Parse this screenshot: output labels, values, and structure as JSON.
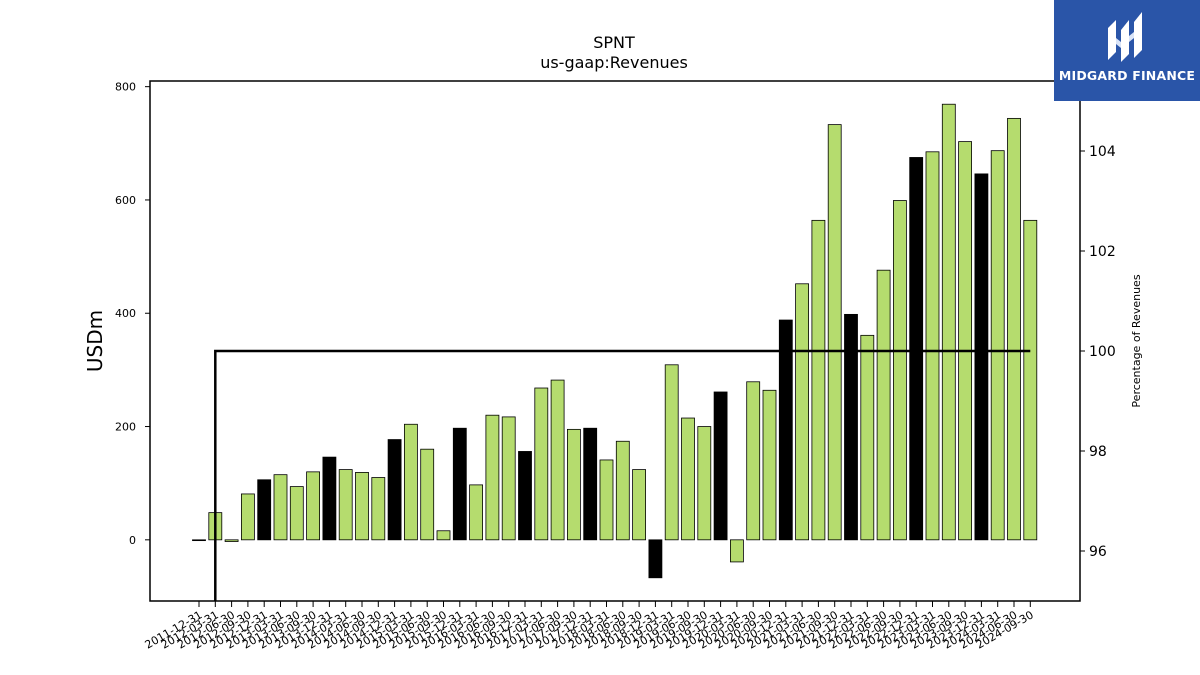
{
  "logo": {
    "text": "MIDGARD FINANCE",
    "icon": "midgard-m-icon"
  },
  "chart_data": {
    "type": "bar",
    "title": "SPNT",
    "subtitle": "us-gaap:Revenues",
    "ylabel": "USDm",
    "y2label": "Percentage of Revenues",
    "ylim": [
      -108,
      810
    ],
    "y2lim": [
      95,
      105.4
    ],
    "yticks": [
      0,
      200,
      400,
      600,
      800
    ],
    "y2ticks": [
      96,
      98,
      100,
      102,
      104
    ],
    "colors": {
      "quarter": "#b5dc6e",
      "annual": "#000000",
      "line": "#000000"
    },
    "categories": [
      "2011-12-31",
      "2012-03-31",
      "2012-06-30",
      "2012-09-30",
      "2012-12-31",
      "2013-03-31",
      "2013-06-30",
      "2013-09-30",
      "2013-12-31",
      "2014-03-31",
      "2014-06-30",
      "2014-09-30",
      "2014-12-31",
      "2015-03-31",
      "2015-06-30",
      "2015-09-30",
      "2015-12-31",
      "2016-03-31",
      "2016-06-30",
      "2016-09-30",
      "2016-12-31",
      "2017-03-31",
      "2017-06-30",
      "2017-09-30",
      "2017-12-31",
      "2018-03-31",
      "2018-06-30",
      "2018-09-30",
      "2018-12-31",
      "2019-03-31",
      "2019-06-30",
      "2019-09-30",
      "2019-12-31",
      "2020-03-31",
      "2020-06-30",
      "2020-09-30",
      "2020-12-31",
      "2021-03-31",
      "2021-06-30",
      "2021-09-30",
      "2021-12-31",
      "2022-03-31",
      "2022-06-30",
      "2022-09-30",
      "2022-12-31",
      "2023-03-31",
      "2023-06-30",
      "2023-09-30",
      "2023-12-31",
      "2024-03-31",
      "2024-06-30",
      "2024-09-30"
    ],
    "series": [
      {
        "role": "bars",
        "values": [
          0,
          48,
          -3,
          81,
          106,
          115,
          94,
          120,
          146,
          124,
          119,
          110,
          177,
          204,
          160,
          16,
          197,
          97,
          220,
          217,
          156,
          268,
          282,
          195,
          197,
          141,
          174,
          124,
          -67,
          309,
          215,
          200,
          261,
          -39,
          279,
          264,
          388,
          452,
          564,
          733,
          398,
          361,
          476,
          599,
          675,
          685,
          769,
          703,
          646,
          687,
          744,
          564
        ],
        "annual": [
          false,
          false,
          false,
          false,
          true,
          false,
          false,
          false,
          true,
          false,
          false,
          false,
          true,
          false,
          false,
          false,
          true,
          false,
          false,
          false,
          true,
          false,
          false,
          false,
          true,
          false,
          false,
          false,
          true,
          false,
          false,
          false,
          true,
          false,
          false,
          false,
          true,
          false,
          false,
          false,
          true,
          false,
          false,
          false,
          true,
          false,
          false,
          false,
          true,
          false,
          false,
          false
        ]
      },
      {
        "role": "line",
        "axis": "right",
        "values": [
          null,
          100,
          100,
          100,
          100,
          100,
          100,
          100,
          100,
          100,
          100,
          100,
          100,
          100,
          100,
          100,
          100,
          100,
          100,
          100,
          100,
          100,
          100,
          100,
          100,
          100,
          100,
          100,
          100,
          100,
          100,
          100,
          100,
          100,
          100,
          100,
          100,
          100,
          100,
          100,
          100,
          100,
          100,
          100,
          100,
          100,
          100,
          100,
          100,
          100,
          100,
          100
        ]
      }
    ]
  }
}
